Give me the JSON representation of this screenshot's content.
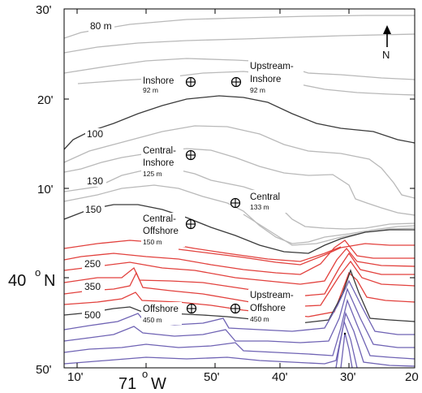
{
  "map": {
    "north_label": "N",
    "lat_ticks": [
      "30'",
      "20'",
      "10'",
      "50'"
    ],
    "lat_major": {
      "value": "40",
      "unit": "o",
      "hemisphere": "N"
    },
    "lon_ticks": [
      "10'",
      "50'",
      "40'",
      "30'",
      "20"
    ],
    "lon_major": {
      "value": "71",
      "unit": "o",
      "hemisphere": "W"
    },
    "contour_labels": [
      "80 m",
      "100",
      "130",
      "150",
      "250",
      "350",
      "500"
    ],
    "colors": {
      "shallow": "#b9b9b9",
      "isobath_dark": "#3a3a3a",
      "mid": "#e2413d",
      "deep": "#6f63b4",
      "frame": "#000000"
    },
    "stations": [
      {
        "name": "Inshore",
        "depth": "92 m"
      },
      {
        "name": "Upstream-Inshore",
        "name_lines": [
          "Upstream-",
          "Inshore"
        ],
        "depth": "92 m"
      },
      {
        "name": "Central-Inshore",
        "name_lines": [
          "Central-",
          "Inshore"
        ],
        "depth": "125 m"
      },
      {
        "name": "Central",
        "depth": "133 m"
      },
      {
        "name": "Central-Offshore",
        "name_lines": [
          "Central-",
          "Offshore"
        ],
        "depth": "150 m"
      },
      {
        "name": "Offshore",
        "depth": "450 m"
      },
      {
        "name": "Upstream-Offshore",
        "name_lines": [
          "Upstream-",
          "Offshore"
        ],
        "depth": "450 m"
      }
    ]
  }
}
